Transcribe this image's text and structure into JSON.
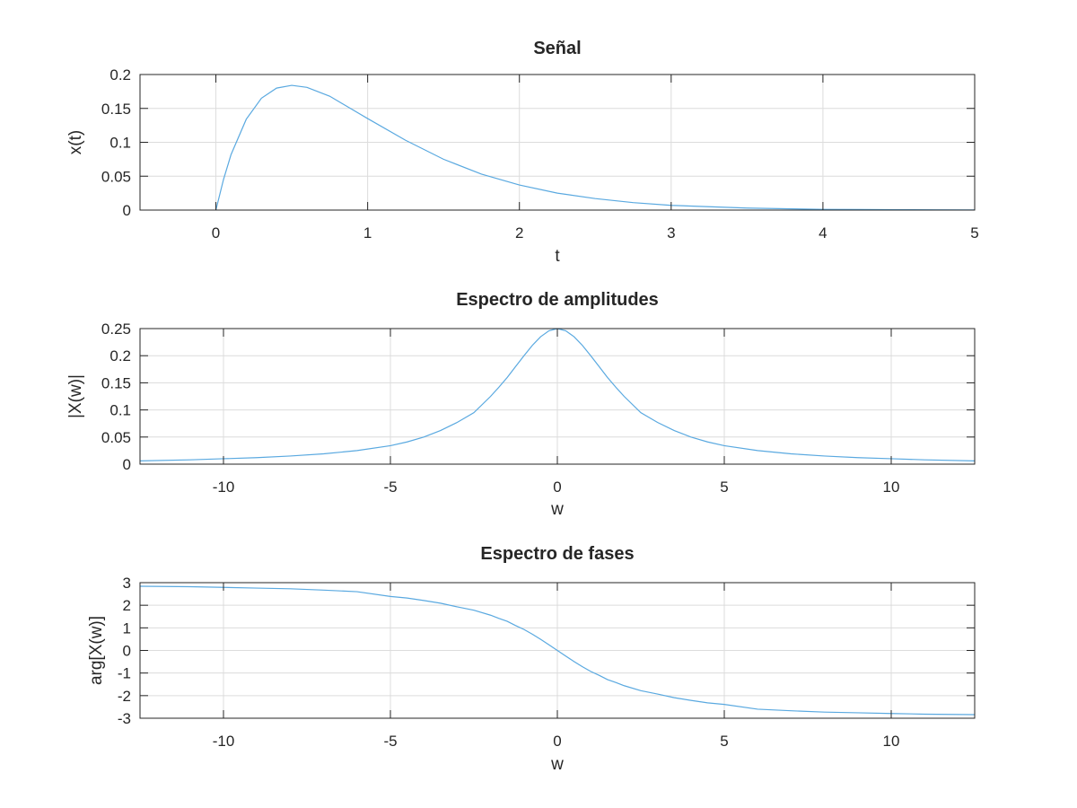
{
  "figure": {
    "background": "#ffffff"
  },
  "chart_data": [
    {
      "type": "line",
      "title": "Señal",
      "xlabel": "t",
      "ylabel": "x(t)",
      "xlim": [
        -0.5,
        5
      ],
      "ylim": [
        0,
        0.2
      ],
      "xticks": [
        0,
        1,
        2,
        3,
        4,
        5
      ],
      "xtick_labels": [
        "0",
        "1",
        "2",
        "3",
        "4",
        "5"
      ],
      "yticks": [
        0,
        0.05,
        0.1,
        0.15,
        0.2
      ],
      "ytick_labels": [
        "0",
        "0.05",
        "0.1",
        "0.15",
        "0.2"
      ],
      "grid": true,
      "color": "#5aa9e0",
      "series": [
        {
          "x": [
            0,
            0.05,
            0.1,
            0.2,
            0.3,
            0.4,
            0.5,
            0.6,
            0.75,
            1.0,
            1.25,
            1.5,
            1.75,
            2.0,
            2.25,
            2.5,
            2.75,
            3.0,
            3.25,
            3.5,
            3.75,
            4.0,
            4.25,
            4.5,
            4.75,
            5.0
          ],
          "y": [
            0,
            0.045,
            0.082,
            0.134,
            0.165,
            0.18,
            0.184,
            0.181,
            0.168,
            0.135,
            0.103,
            0.075,
            0.053,
            0.037,
            0.025,
            0.017,
            0.011,
            0.007,
            0.005,
            0.003,
            0.002,
            0.001,
            0.0009,
            0.0006,
            0.0004,
            0.0002
          ]
        }
      ]
    },
    {
      "type": "line",
      "title": "Espectro de amplitudes",
      "xlabel": "w",
      "ylabel": "|X(w)|",
      "xlim": [
        -12.5,
        12.5
      ],
      "ylim": [
        0,
        0.25
      ],
      "xticks": [
        -10,
        -5,
        0,
        5,
        10
      ],
      "xtick_labels": [
        "-10",
        "-5",
        "0",
        "5",
        "10"
      ],
      "yticks": [
        0,
        0.05,
        0.1,
        0.15,
        0.2,
        0.25
      ],
      "ytick_labels": [
        "0",
        "0.05",
        "0.1",
        "0.15",
        "0.2",
        "0.25"
      ],
      "grid": true,
      "color": "#5aa9e0",
      "series": [
        {
          "x": [
            -12.5,
            -11,
            -10,
            -9,
            -8,
            -7,
            -6,
            -5,
            -4.5,
            -4,
            -3.5,
            -3,
            -2.5,
            -2,
            -1.75,
            -1.5,
            -1.25,
            -1,
            -0.75,
            -0.5,
            -0.25,
            0,
            0.25,
            0.5,
            0.75,
            1,
            1.25,
            1.5,
            1.75,
            2,
            2.5,
            3,
            3.5,
            4,
            4.5,
            5,
            6,
            7,
            8,
            9,
            10,
            11,
            12.5
          ],
          "y": [
            0.006,
            0.008,
            0.01,
            0.012,
            0.015,
            0.019,
            0.025,
            0.034,
            0.041,
            0.05,
            0.062,
            0.077,
            0.095,
            0.125,
            0.142,
            0.16,
            0.18,
            0.2,
            0.219,
            0.235,
            0.246,
            0.25,
            0.246,
            0.235,
            0.219,
            0.2,
            0.18,
            0.16,
            0.142,
            0.125,
            0.095,
            0.077,
            0.062,
            0.05,
            0.041,
            0.034,
            0.025,
            0.019,
            0.015,
            0.012,
            0.01,
            0.008,
            0.006
          ]
        }
      ]
    },
    {
      "type": "line",
      "title": "Espectro de fases",
      "xlabel": "w",
      "ylabel": "arg[X(w)]",
      "xlim": [
        -12.5,
        12.5
      ],
      "ylim": [
        -3,
        3
      ],
      "xticks": [
        -10,
        -5,
        0,
        5,
        10
      ],
      "xtick_labels": [
        "-10",
        "-5",
        "0",
        "5",
        "10"
      ],
      "yticks": [
        -3,
        -2,
        -1,
        0,
        1,
        2,
        3
      ],
      "ytick_labels": [
        "-3",
        "-2",
        "-1",
        "0",
        "1",
        "2",
        "3"
      ],
      "grid": true,
      "color": "#5aa9e0",
      "series": [
        {
          "x": [
            -12.5,
            -11,
            -10,
            -9,
            -8,
            -7,
            -6,
            -5,
            -4.5,
            -4,
            -3.5,
            -3,
            -2.5,
            -2,
            -1.75,
            -1.5,
            -1.25,
            -1,
            -0.75,
            -0.5,
            -0.25,
            0,
            0.25,
            0.5,
            0.75,
            1,
            1.25,
            1.5,
            1.75,
            2,
            2.5,
            3,
            3.5,
            4,
            4.5,
            5,
            6,
            7,
            8,
            9,
            10,
            11,
            12.5
          ],
          "y": [
            2.84,
            2.82,
            2.79,
            2.76,
            2.73,
            2.67,
            2.6,
            2.39,
            2.32,
            2.21,
            2.09,
            1.93,
            1.78,
            1.56,
            1.42,
            1.29,
            1.1,
            0.93,
            0.72,
            0.49,
            0.25,
            0,
            -0.25,
            -0.49,
            -0.72,
            -0.93,
            -1.1,
            -1.29,
            -1.42,
            -1.56,
            -1.78,
            -1.93,
            -2.09,
            -2.21,
            -2.32,
            -2.39,
            -2.6,
            -2.67,
            -2.73,
            -2.76,
            -2.79,
            -2.82,
            -2.84
          ]
        }
      ]
    }
  ]
}
